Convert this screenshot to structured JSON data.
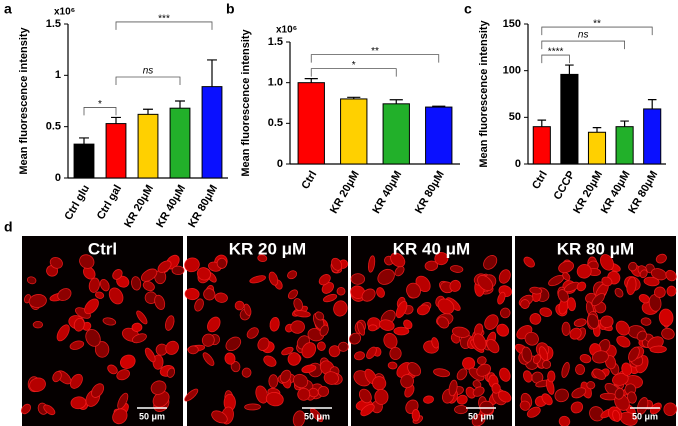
{
  "chart_data": [
    {
      "type": "bar",
      "panel": "a",
      "y_multiplier": "x10⁶",
      "ylabel": "Mean fluorescence intensity",
      "categories": [
        "Ctrl glu",
        "Ctrl gal",
        "KR 20μM",
        "KR 40μM",
        "KR 80μM"
      ],
      "values": [
        0.33,
        0.53,
        0.62,
        0.68,
        0.89
      ],
      "errors": [
        0.06,
        0.06,
        0.05,
        0.07,
        0.26
      ],
      "colors": [
        "#000000",
        "#ff0000",
        "#ffd000",
        "#22b02a",
        "#0a10ff"
      ],
      "ylim": [
        0,
        1.5
      ],
      "yticks": [
        0,
        0.5,
        1,
        1.5
      ],
      "annotations": [
        {
          "text": "*",
          "from": 0,
          "to": 1
        },
        {
          "text": "ns",
          "from": 1,
          "to": 3
        },
        {
          "text": "***",
          "from": 1,
          "to": 4
        }
      ]
    },
    {
      "type": "bar",
      "panel": "b",
      "y_multiplier": "x10⁶",
      "ylabel": "Mean fluorescence intensity",
      "categories": [
        "Ctrl",
        "KR 20μM",
        "KR 40μM",
        "KR 80μM"
      ],
      "values": [
        1.0,
        0.8,
        0.74,
        0.7
      ],
      "errors": [
        0.05,
        0.02,
        0.05,
        0.01
      ],
      "colors": [
        "#ff0000",
        "#ffd000",
        "#22b02a",
        "#0a10ff"
      ],
      "ylim": [
        0,
        1.5
      ],
      "yticks": [
        0,
        0.5,
        {
          "value": 1,
          "label": "1.0"
        },
        1.5
      ],
      "annotations": [
        {
          "text": "*",
          "from": 0,
          "to": 2
        },
        {
          "text": "**",
          "from": 0,
          "to": 3
        }
      ]
    },
    {
      "type": "bar",
      "panel": "c",
      "ylabel": "Mean fluorescence intensity",
      "categories": [
        "Ctrl",
        "CCCP",
        "KR 20μM",
        "KR 40μM",
        "KR 80μM"
      ],
      "values": [
        40,
        96,
        34,
        40,
        59
      ],
      "errors": [
        7,
        10,
        5,
        6,
        10
      ],
      "colors": [
        "#ff0000",
        "#000000",
        "#ffd000",
        "#22b02a",
        "#0a10ff"
      ],
      "ylim": [
        0,
        150
      ],
      "yticks": [
        0,
        50,
        100,
        150
      ],
      "annotations": [
        {
          "text": "****",
          "from": 0,
          "to": 1
        },
        {
          "text": "ns",
          "from": 0,
          "to": 3
        },
        {
          "text": "**",
          "from": 0,
          "to": 4
        }
      ]
    }
  ],
  "panel_d": {
    "label": "d",
    "images": [
      {
        "title": "Ctrl",
        "scale_bar": "50 μm"
      },
      {
        "title": "KR 20 μM",
        "scale_bar": "50 μm"
      },
      {
        "title": "KR 40 μM",
        "scale_bar": "50 μm"
      },
      {
        "title": "KR 80 μM",
        "scale_bar": "50 μm"
      }
    ]
  }
}
